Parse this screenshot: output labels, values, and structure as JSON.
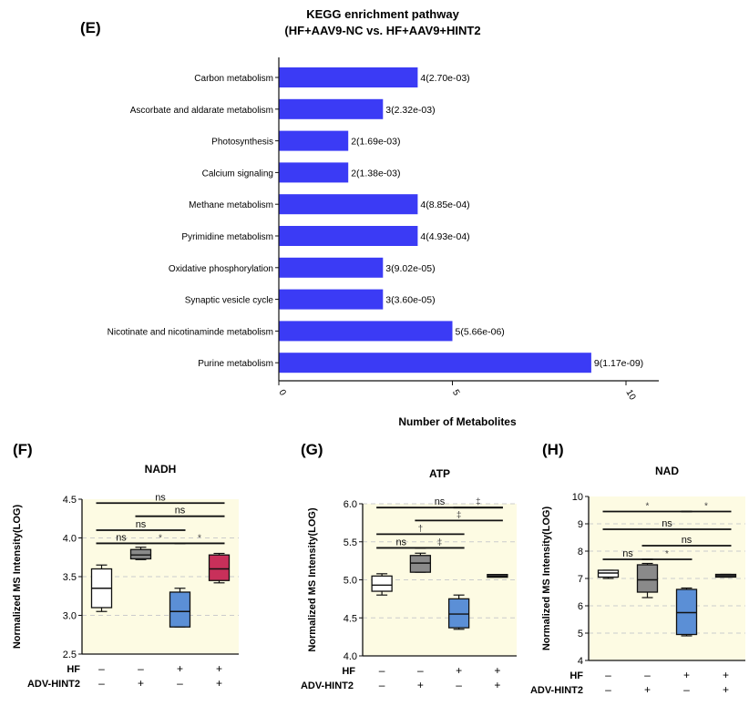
{
  "panel_letters": {
    "E": "(E)",
    "F": "(F)",
    "G": "(G)",
    "H": "(H)"
  },
  "colors": {
    "bar": "#3b3bf5",
    "bg": "#fdfbe3",
    "grid": "#cccccc",
    "gray_box": "#8a8a8a",
    "blue_box": "#5b8fd6",
    "red_box": "#c8305a",
    "white_box": "#ffffff"
  },
  "chart_data": [
    {
      "type": "bar",
      "orientation": "horizontal",
      "title": "KEGG enrichment pathway",
      "subtitle": "(HF+AAV9-NC vs. HF+AAV9+HINT2",
      "xlabel": "Number of Metabolites",
      "ylabel": "",
      "xlim": [
        0,
        11
      ],
      "xticks": [
        "0",
        "5",
        "10"
      ],
      "categories": [
        "Carbon metabolism",
        "Ascorbate and aldarate metabolism",
        "Photosynthesis",
        "Calcium signaling",
        "Methane metabolism",
        "Pyrimidine metabolism",
        "Oxidative phosphorylation",
        "Synaptic vesicle cycle",
        "Nicotinate and nicotinaminde metabolism",
        "Purine metabolism"
      ],
      "values": [
        4,
        3,
        2,
        2,
        4,
        4,
        3,
        3,
        5,
        9
      ],
      "data_labels": [
        "4(2.70e-03)",
        "3(2.32e-03)",
        "2(1.69e-03)",
        "2(1.38e-03)",
        "4(8.85e-04)",
        "4(4.93e-04)",
        "3(9.02e-05)",
        "3(3.60e-05)",
        "5(5.66e-06)",
        "9(1.17e-09)"
      ]
    },
    {
      "type": "box",
      "title": "NADH",
      "ylabel": "Normalized MS Intensity(LOG)",
      "ylim": [
        2.5,
        4.5
      ],
      "yticks": [
        "2.5",
        "3.0",
        "3.5",
        "4.0",
        "4.5"
      ],
      "grid_values": [
        3.0,
        3.5,
        4.0
      ],
      "boxes": [
        {
          "min": 3.05,
          "q1": 3.1,
          "median": 3.35,
          "q3": 3.6,
          "max": 3.65,
          "color": "white"
        },
        {
          "min": 3.72,
          "q1": 3.73,
          "median": 3.78,
          "q3": 3.85,
          "max": 3.88,
          "color": "gray"
        },
        {
          "min": 2.85,
          "q1": 2.85,
          "median": 3.05,
          "q3": 3.3,
          "max": 3.35,
          "color": "blue"
        },
        {
          "min": 3.42,
          "q1": 3.45,
          "median": 3.6,
          "q3": 3.78,
          "max": 3.8,
          "color": "red"
        }
      ],
      "brackets": [
        {
          "from": 0,
          "to": 3,
          "level": 4.45,
          "label": "ns"
        },
        {
          "from": 1,
          "to": 3,
          "level": 4.28,
          "label": "ns"
        },
        {
          "from": 0,
          "to": 2,
          "level": 4.1,
          "label": "ns"
        },
        {
          "from": 0,
          "to": 1,
          "level": 3.93,
          "label": "ns"
        },
        {
          "from": 1,
          "to": 2,
          "level": 3.93,
          "label": "*"
        },
        {
          "from": 2,
          "to": 3,
          "level": 3.93,
          "label": "*"
        }
      ],
      "hf": [
        "–",
        "–",
        "+",
        "+"
      ],
      "adv": [
        "–",
        "+",
        "–",
        "+"
      ]
    },
    {
      "type": "box",
      "title": "ATP",
      "ylabel": "Normalized MS Intensity(LOG)",
      "ylim": [
        4.0,
        6.0
      ],
      "yticks": [
        "4.0",
        "4.5",
        "5.0",
        "5.5",
        "6.0"
      ],
      "grid_values": [
        4.5,
        5.0,
        5.5,
        6.0
      ],
      "boxes": [
        {
          "min": 4.8,
          "q1": 4.85,
          "median": 4.93,
          "q3": 5.05,
          "max": 5.08,
          "color": "white"
        },
        {
          "min": 5.1,
          "q1": 5.1,
          "median": 5.22,
          "q3": 5.32,
          "max": 5.35,
          "color": "gray"
        },
        {
          "min": 4.35,
          "q1": 4.37,
          "median": 4.55,
          "q3": 4.75,
          "max": 4.8,
          "color": "blue"
        },
        {
          "min": 5.04,
          "q1": 5.04,
          "median": 5.05,
          "q3": 5.07,
          "max": 5.07,
          "color": "gray"
        }
      ],
      "brackets": [
        {
          "from": 0,
          "to": 3,
          "level": 5.95,
          "label": "ns"
        },
        {
          "from": 2,
          "to": 3,
          "level": 5.95,
          "label": "‡"
        },
        {
          "from": 1,
          "to": 3,
          "level": 5.78,
          "label": "‡"
        },
        {
          "from": 0,
          "to": 2,
          "level": 5.6,
          "label": "†"
        },
        {
          "from": 0,
          "to": 1,
          "level": 5.42,
          "label": "ns"
        },
        {
          "from": 1,
          "to": 2,
          "level": 5.42,
          "label": "‡"
        }
      ],
      "hf": [
        "–",
        "–",
        "+",
        "+"
      ],
      "adv": [
        "–",
        "+",
        "–",
        "+"
      ]
    },
    {
      "type": "box",
      "title": "NAD",
      "ylabel": "Normalized MS Intensity(LOG)",
      "ylim": [
        4,
        10
      ],
      "yticks": [
        "4",
        "5",
        "6",
        "7",
        "8",
        "9",
        "10"
      ],
      "grid_values": [
        5,
        6,
        7,
        8,
        9
      ],
      "boxes": [
        {
          "min": 7.0,
          "q1": 7.05,
          "median": 7.2,
          "q3": 7.3,
          "max": 7.3,
          "color": "white"
        },
        {
          "min": 6.3,
          "q1": 6.5,
          "median": 6.95,
          "q3": 7.5,
          "max": 7.55,
          "color": "gray"
        },
        {
          "min": 4.9,
          "q1": 4.95,
          "median": 5.75,
          "q3": 6.6,
          "max": 6.65,
          "color": "blue"
        },
        {
          "min": 7.05,
          "q1": 7.05,
          "median": 7.1,
          "q3": 7.15,
          "max": 7.15,
          "color": "gray"
        }
      ],
      "brackets": [
        {
          "from": 0,
          "to": 2,
          "level": 9.45,
          "label": "*"
        },
        {
          "from": 2,
          "to": 3,
          "level": 9.45,
          "label": "*"
        },
        {
          "from": 0,
          "to": 3,
          "level": 8.8,
          "label": "ns"
        },
        {
          "from": 1,
          "to": 3,
          "level": 8.2,
          "label": "ns"
        },
        {
          "from": 0,
          "to": 1,
          "level": 7.7,
          "label": "ns"
        },
        {
          "from": 1,
          "to": 2,
          "level": 7.7,
          "label": "*"
        }
      ],
      "hf": [
        "–",
        "–",
        "+",
        "+"
      ],
      "adv": [
        "–",
        "+",
        "–",
        "+"
      ]
    }
  ],
  "row_labels": {
    "hf": "HF",
    "adv": "ADV-HINT2"
  }
}
